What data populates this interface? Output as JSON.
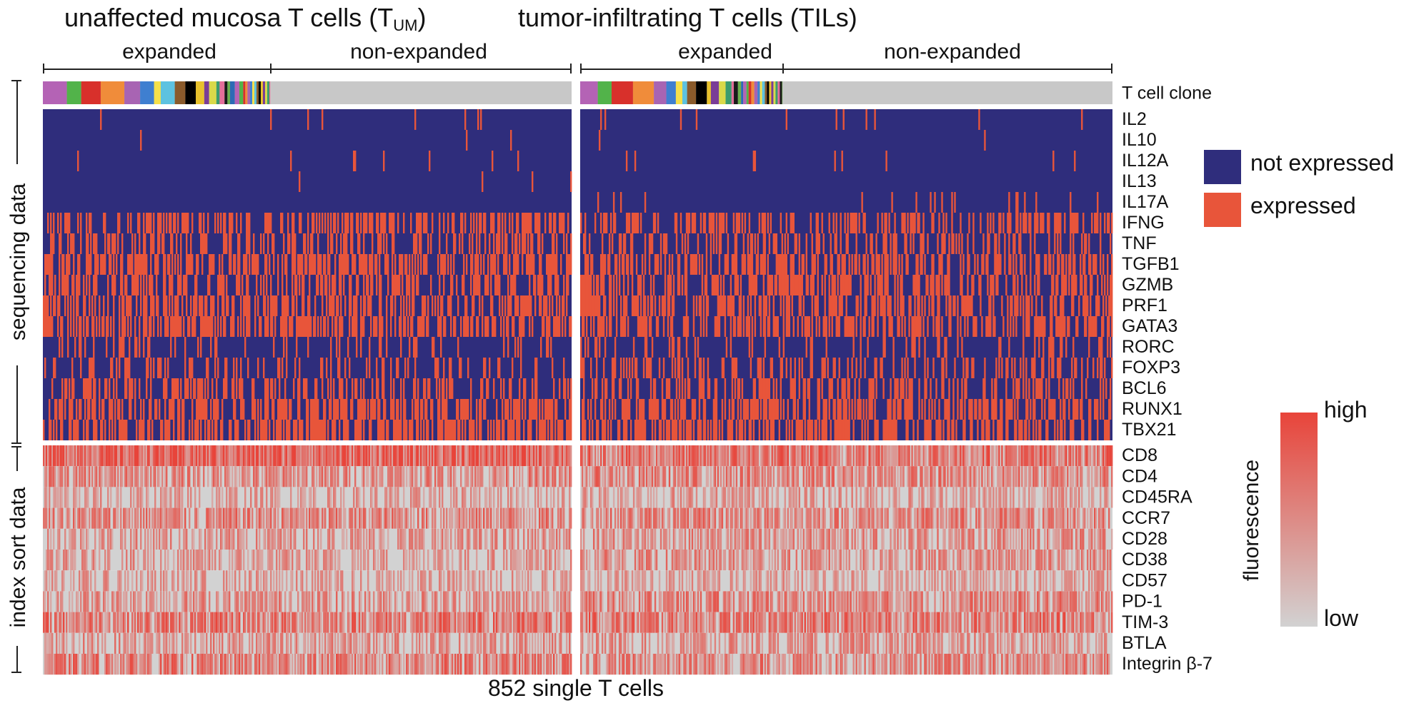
{
  "titles": {
    "left_main": "unaffected mucosa T cells (T",
    "left_sub": "UM",
    "left_close": ")",
    "right": "tumor-infiltrating T cells (TILs)"
  },
  "groups": {
    "left_expanded": "expanded",
    "left_nonexpanded": "non-expanded",
    "right_expanded": "expanded",
    "right_nonexpanded": "non-expanded"
  },
  "side_labels": {
    "sequencing": "sequencing data",
    "index_sort": "index sort data"
  },
  "footer": "852 single T cells",
  "legend": {
    "not_expressed": "not expressed",
    "expressed": "expressed",
    "scale_high": "high",
    "scale_low": "low",
    "scale_title": "fluorescence"
  },
  "colors": {
    "not_expressed": "#2f2d7c",
    "expressed": "#e8553a",
    "fluor_low": "#d2d2d2",
    "fluor_high": "#e8443a",
    "clone_unexpanded": "#c8c8c8"
  },
  "chart_data": {
    "type": "heatmap",
    "n_cells": 852,
    "panels": [
      {
        "name": "unaffected mucosa T cells (TUM)",
        "expanded_fraction": 0.43
      },
      {
        "name": "tumor-infiltrating T cells (TILs)",
        "expanded_fraction": 0.38
      }
    ],
    "clone_row_label": "T cell clone",
    "sequencing_rows": [
      {
        "label": "IL2",
        "p_left": 0.02,
        "p_right": 0.02
      },
      {
        "label": "IL10",
        "p_left": 0.005,
        "p_right": 0.005
      },
      {
        "label": "IL12A",
        "p_left": 0.02,
        "p_right": 0.02
      },
      {
        "label": "IL13",
        "p_left": 0.005,
        "p_right": 0.01
      },
      {
        "label": "IL17A",
        "p_left": 0.01,
        "p_right": 0.05
      },
      {
        "label": "IFNG",
        "p_left": 0.45,
        "p_right": 0.4
      },
      {
        "label": "TNF",
        "p_left": 0.4,
        "p_right": 0.3
      },
      {
        "label": "TGFB1",
        "p_left": 0.55,
        "p_right": 0.5
      },
      {
        "label": "GZMB",
        "p_left": 0.45,
        "p_right": 0.45
      },
      {
        "label": "PRF1",
        "p_left": 0.5,
        "p_right": 0.45
      },
      {
        "label": "GATA3",
        "p_left": 0.55,
        "p_right": 0.55
      },
      {
        "label": "RORC",
        "p_left": 0.15,
        "p_right": 0.15
      },
      {
        "label": "FOXP3",
        "p_left": 0.2,
        "p_right": 0.3
      },
      {
        "label": "BCL6",
        "p_left": 0.4,
        "p_right": 0.4
      },
      {
        "label": "RUNX1",
        "p_left": 0.55,
        "p_right": 0.55
      },
      {
        "label": "TBX21",
        "p_left": 0.55,
        "p_right": 0.5
      }
    ],
    "index_sort_rows": [
      {
        "label": "CD8",
        "m_left": 0.75,
        "m_right": 0.6
      },
      {
        "label": "CD4",
        "m_left": 0.4,
        "m_right": 0.45
      },
      {
        "label": "CD45RA",
        "m_left": 0.2,
        "m_right": 0.25
      },
      {
        "label": "CCR7",
        "m_left": 0.45,
        "m_right": 0.45
      },
      {
        "label": "CD28",
        "m_left": 0.3,
        "m_right": 0.35
      },
      {
        "label": "CD38",
        "m_left": 0.25,
        "m_right": 0.35
      },
      {
        "label": "CD57",
        "m_left": 0.2,
        "m_right": 0.2
      },
      {
        "label": "PD-1",
        "m_left": 0.35,
        "m_right": 0.45
      },
      {
        "label": "TIM-3",
        "m_left": 0.55,
        "m_right": 0.55
      },
      {
        "label": "BTLA",
        "m_left": 0.3,
        "m_right": 0.3
      },
      {
        "label": "Integrin β-7",
        "m_left": 0.5,
        "m_right": 0.45
      }
    ]
  }
}
